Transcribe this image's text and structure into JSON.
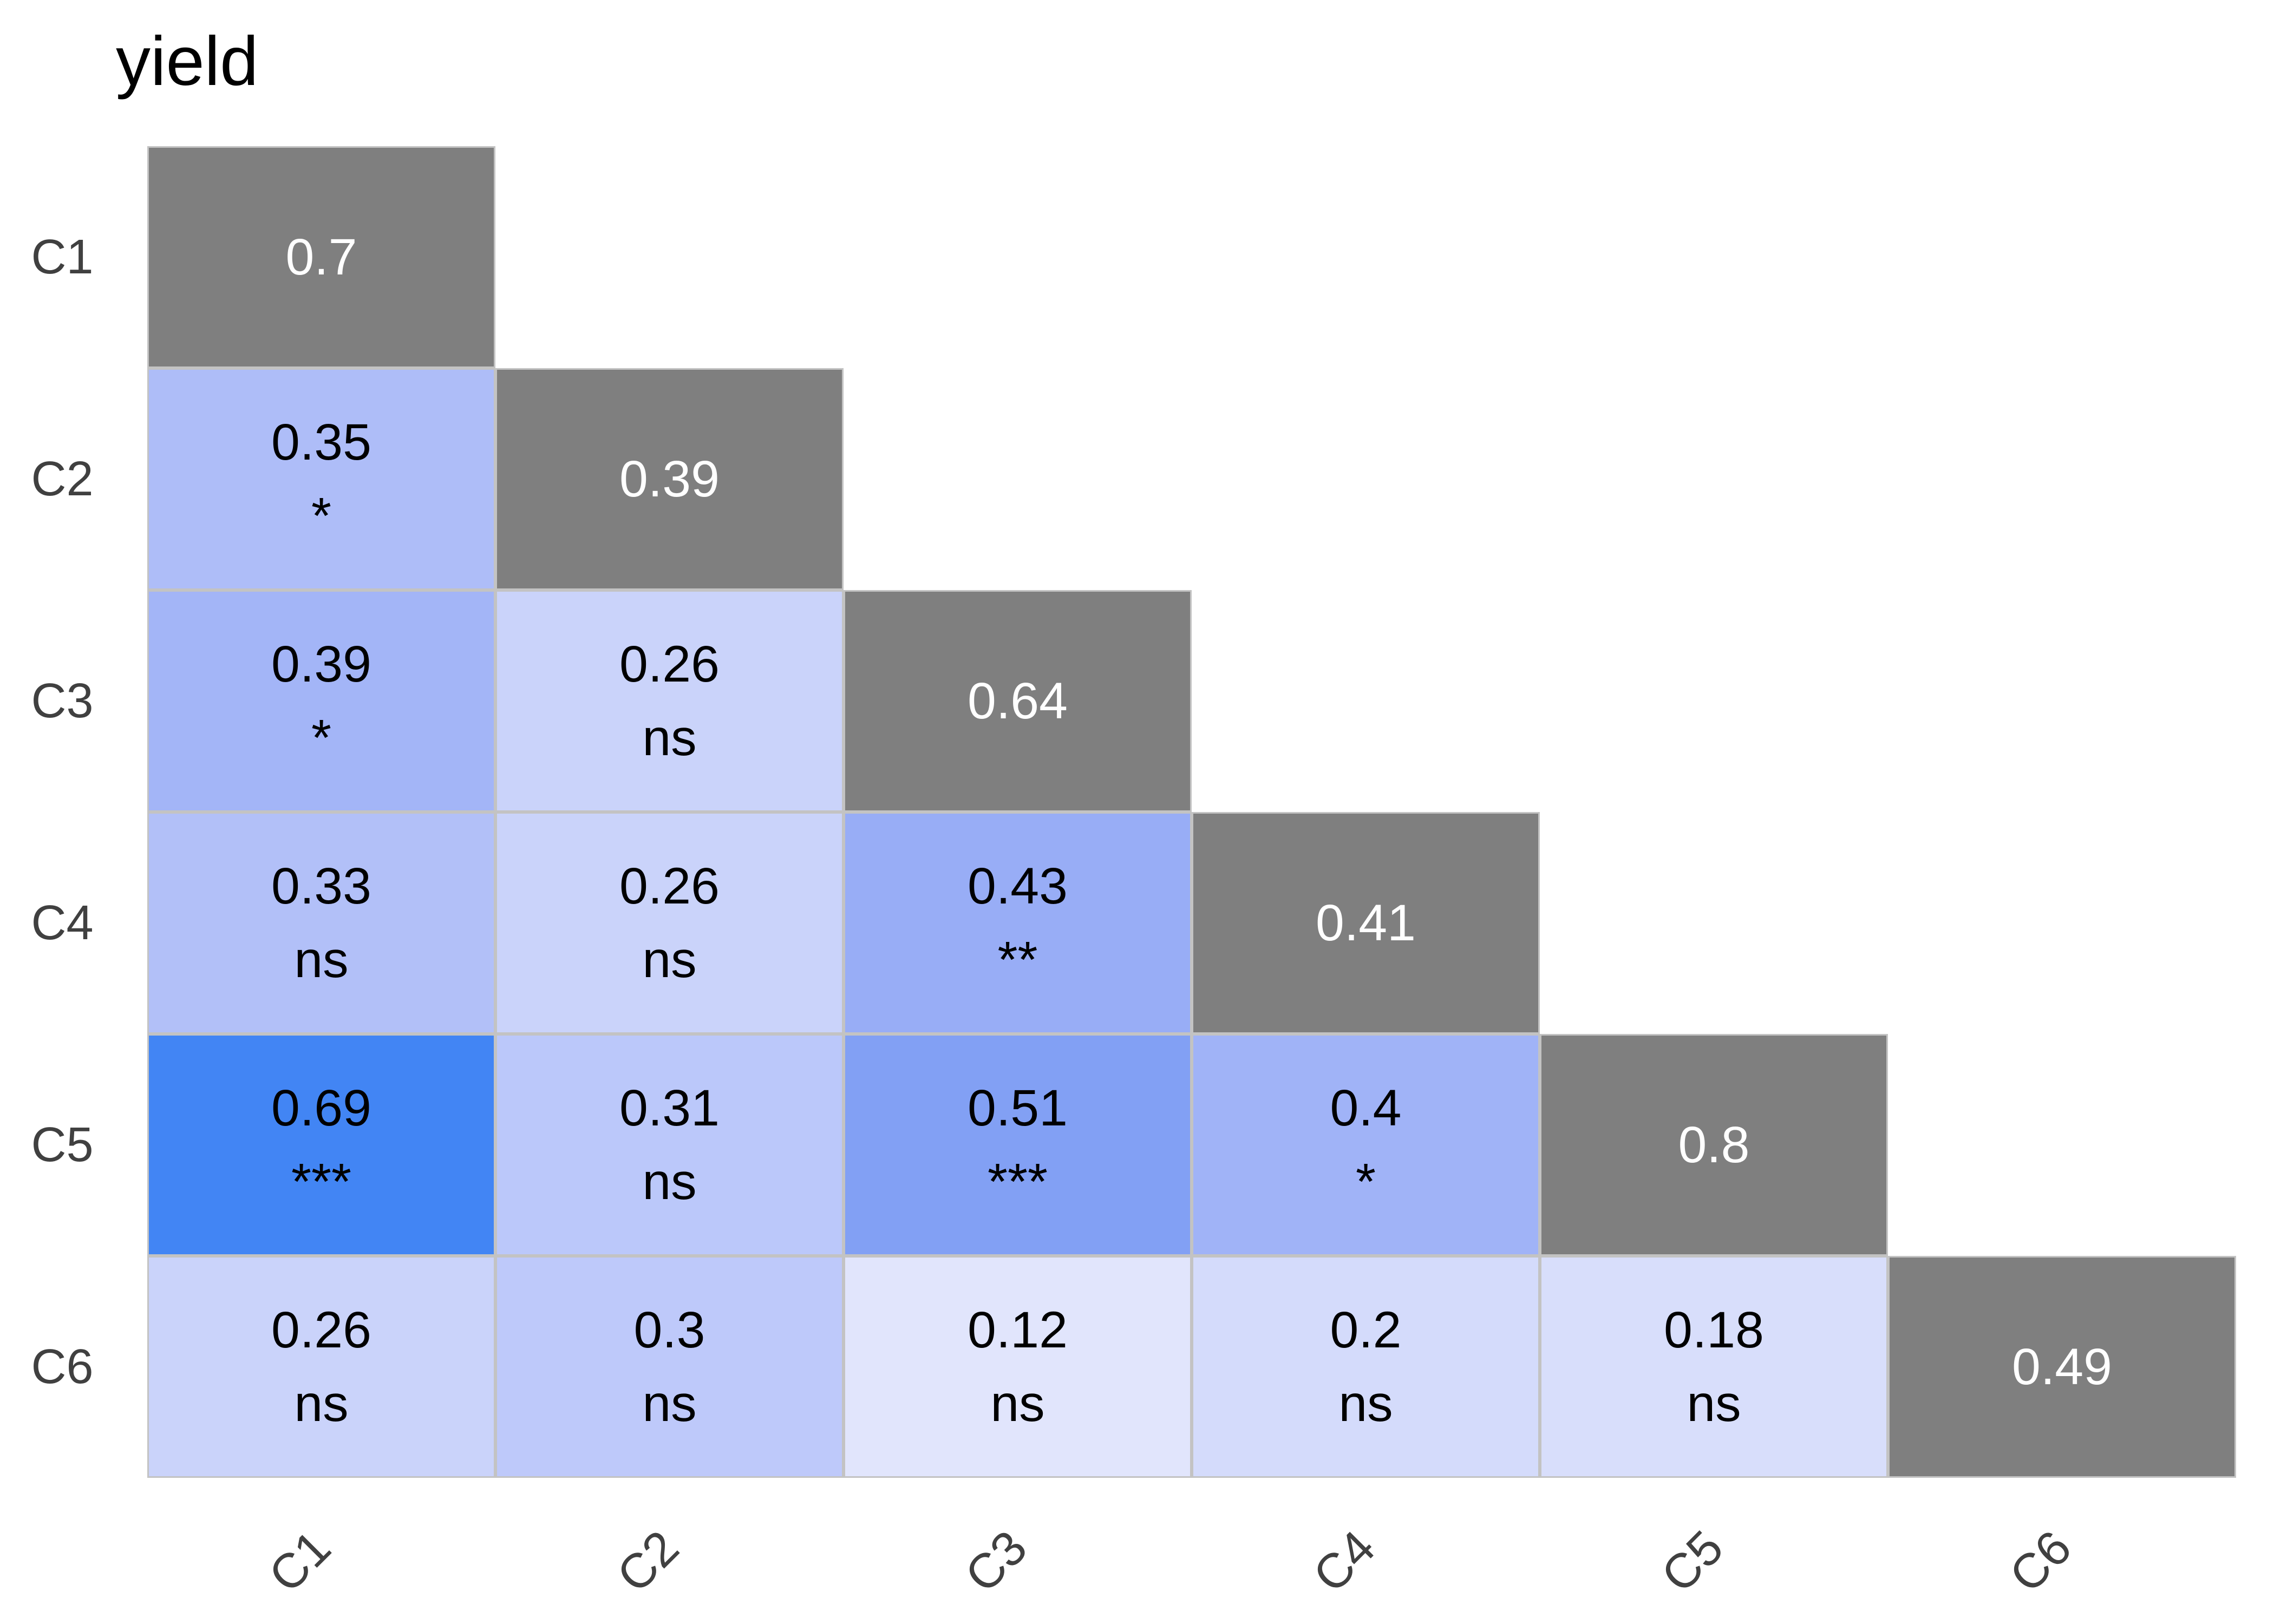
{
  "title": "yield",
  "colors": {
    "background": "#ffffff",
    "diagonal_cell": "#7f7f7f",
    "grid_line": "#c3c3c3",
    "axis_label": "#404040",
    "value_text": "#000000",
    "diagonal_value_text": "#ffffff",
    "max_correlation_blue": "#4285f4"
  },
  "chart_data": {
    "type": "heatmap",
    "subtype": "lower_triangular_correlation_matrix",
    "title": "yield",
    "legend": "none",
    "rows": [
      "C1",
      "C2",
      "C3",
      "C4",
      "C5",
      "C6"
    ],
    "columns": [
      "C1",
      "C2",
      "C3",
      "C4",
      "C5",
      "C6"
    ],
    "cells": [
      {
        "row": "C1",
        "col": "C1",
        "value": 0.7,
        "sig": null,
        "diagonal": true,
        "color": "#7f7f7f"
      },
      {
        "row": "C2",
        "col": "C1",
        "value": 0.35,
        "sig": "*",
        "diagonal": false,
        "color": "#aebdf8"
      },
      {
        "row": "C2",
        "col": "C2",
        "value": 0.39,
        "sig": null,
        "diagonal": true,
        "color": "#7f7f7f"
      },
      {
        "row": "C3",
        "col": "C1",
        "value": 0.39,
        "sig": "*",
        "diagonal": false,
        "color": "#a3b5f7"
      },
      {
        "row": "C3",
        "col": "C2",
        "value": 0.26,
        "sig": "ns",
        "diagonal": false,
        "color": "#cad3fa"
      },
      {
        "row": "C3",
        "col": "C3",
        "value": 0.64,
        "sig": null,
        "diagonal": true,
        "color": "#7f7f7f"
      },
      {
        "row": "C4",
        "col": "C1",
        "value": 0.33,
        "sig": "ns",
        "diagonal": false,
        "color": "#b2c0f8"
      },
      {
        "row": "C4",
        "col": "C2",
        "value": 0.26,
        "sig": "ns",
        "diagonal": false,
        "color": "#cad3fa"
      },
      {
        "row": "C4",
        "col": "C3",
        "value": 0.43,
        "sig": "**",
        "diagonal": false,
        "color": "#98adf6"
      },
      {
        "row": "C4",
        "col": "C4",
        "value": 0.41,
        "sig": null,
        "diagonal": true,
        "color": "#7f7f7f"
      },
      {
        "row": "C5",
        "col": "C1",
        "value": 0.69,
        "sig": "***",
        "diagonal": false,
        "color": "#4285f4"
      },
      {
        "row": "C5",
        "col": "C2",
        "value": 0.31,
        "sig": "ns",
        "diagonal": false,
        "color": "#bbc8fa"
      },
      {
        "row": "C5",
        "col": "C3",
        "value": 0.51,
        "sig": "***",
        "diagonal": false,
        "color": "#82a0f4"
      },
      {
        "row": "C5",
        "col": "C4",
        "value": 0.4,
        "sig": "*",
        "diagonal": false,
        "color": "#a0b3f7"
      },
      {
        "row": "C5",
        "col": "C5",
        "value": 0.8,
        "sig": null,
        "diagonal": true,
        "color": "#7f7f7f"
      },
      {
        "row": "C6",
        "col": "C1",
        "value": 0.26,
        "sig": "ns",
        "diagonal": false,
        "color": "#cad3fa"
      },
      {
        "row": "C6",
        "col": "C2",
        "value": 0.3,
        "sig": "ns",
        "diagonal": false,
        "color": "#bec9fa"
      },
      {
        "row": "C6",
        "col": "C3",
        "value": 0.12,
        "sig": "ns",
        "diagonal": false,
        "color": "#e1e5fc"
      },
      {
        "row": "C6",
        "col": "C4",
        "value": 0.2,
        "sig": "ns",
        "diagonal": false,
        "color": "#d4dbfb"
      },
      {
        "row": "C6",
        "col": "C5",
        "value": 0.18,
        "sig": "ns",
        "diagonal": false,
        "color": "#d8defb"
      },
      {
        "row": "C6",
        "col": "C6",
        "value": 0.49,
        "sig": null,
        "diagonal": true,
        "color": "#7f7f7f"
      }
    ]
  }
}
